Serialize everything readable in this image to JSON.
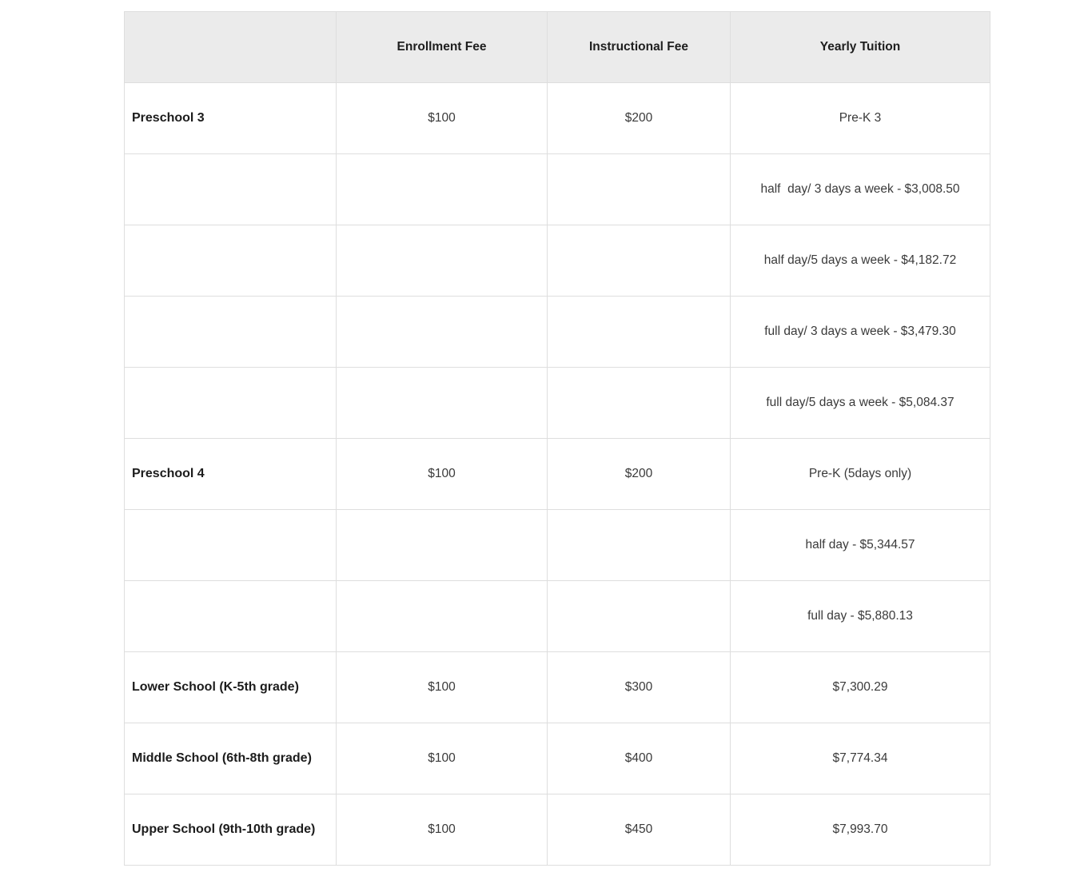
{
  "table": {
    "columns": [
      {
        "key": "category",
        "label": ""
      },
      {
        "key": "enrollment_fee",
        "label": "Enrollment Fee"
      },
      {
        "key": "instructional_fee",
        "label": "Instructional Fee"
      },
      {
        "key": "yearly_tuition",
        "label": "Yearly Tuition"
      }
    ],
    "rows": [
      [
        "Preschool 3",
        "$100",
        "$200",
        "Pre-K 3"
      ],
      [
        "",
        "",
        "",
        "half  day/ 3 days a week - $3,008.50"
      ],
      [
        "",
        "",
        "",
        "half day/5 days a week - $4,182.72"
      ],
      [
        "",
        "",
        "",
        "full day/ 3 days a week - $3,479.30"
      ],
      [
        "",
        "",
        "",
        "full day/5 days a week - $5,084.37"
      ],
      [
        "Preschool 4",
        "$100",
        "$200",
        "Pre-K (5days only)"
      ],
      [
        "",
        "",
        "",
        "half day - $5,344.57"
      ],
      [
        "",
        "",
        "",
        "full day - $5,880.13"
      ],
      [
        "Lower School (K-5th grade)",
        "$100",
        "$300",
        "$7,300.29"
      ],
      [
        "Middle School (6th-8th grade)",
        "$100",
        "$400",
        "$7,774.34"
      ],
      [
        "Upper School (9th-10th grade)",
        "$100",
        "$450",
        "$7,993.70"
      ]
    ]
  },
  "colors": {
    "page_bg": "#ffffff",
    "header_bg": "#ebebeb",
    "border": "#dedede",
    "text_bold": "#1c1c1c",
    "text_body": "#3a3a3a"
  }
}
